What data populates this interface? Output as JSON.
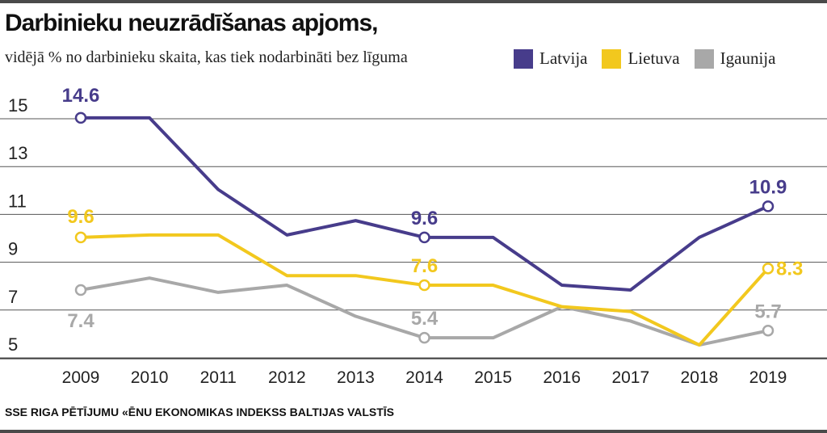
{
  "title": "Darbinieku neuzrādīšanas apjoms,",
  "subtitle": "vidējā % no darbinieku skaita, kas tiek nodarbināti bez līguma",
  "source": "SSE RIGA PĒTĪJUMU «ĒNU EKONOMIKAS INDEKSS BALTIJAS VALSTĪS",
  "colors": {
    "latvija": "#473C8B",
    "lietuva": "#F2C81E",
    "igaunija": "#A8A8A8",
    "grid": "#555555"
  },
  "chart_data": {
    "type": "line",
    "x": [
      "2009",
      "2010",
      "2011",
      "2012",
      "2013",
      "2014",
      "2015",
      "2016",
      "2017",
      "2018",
      "2019"
    ],
    "ylim": [
      4,
      15.8
    ],
    "yticks": [
      5,
      7,
      9,
      11,
      13,
      15
    ],
    "grid": true,
    "legend_position": "top-right",
    "series": [
      {
        "name": "Latvija",
        "color": "#473C8B",
        "values": [
          14.6,
          14.6,
          11.6,
          9.7,
          10.3,
          9.6,
          9.6,
          7.6,
          7.4,
          9.6,
          10.9
        ]
      },
      {
        "name": "Lietuva",
        "color": "#F2C81E",
        "values": [
          9.6,
          9.7,
          9.7,
          8.0,
          8.0,
          7.6,
          7.6,
          6.7,
          6.5,
          5.1,
          8.3
        ]
      },
      {
        "name": "Igaunija",
        "color": "#A8A8A8",
        "values": [
          7.4,
          7.9,
          7.3,
          7.6,
          6.3,
          5.4,
          5.4,
          6.7,
          6.1,
          5.1,
          5.7
        ]
      }
    ],
    "annotations": [
      {
        "series": "Latvija",
        "index": 0,
        "label": "14.6"
      },
      {
        "series": "Latvija",
        "index": 5,
        "label": "9.6"
      },
      {
        "series": "Latvija",
        "index": 10,
        "label": "10.9"
      },
      {
        "series": "Lietuva",
        "index": 0,
        "label": "9.6"
      },
      {
        "series": "Lietuva",
        "index": 5,
        "label": "7.6"
      },
      {
        "series": "Lietuva",
        "index": 10,
        "label": "8.3"
      },
      {
        "series": "Igaunija",
        "index": 0,
        "label": "7.4"
      },
      {
        "series": "Igaunija",
        "index": 5,
        "label": "5.4"
      },
      {
        "series": "Igaunija",
        "index": 10,
        "label": "5.7"
      }
    ]
  }
}
